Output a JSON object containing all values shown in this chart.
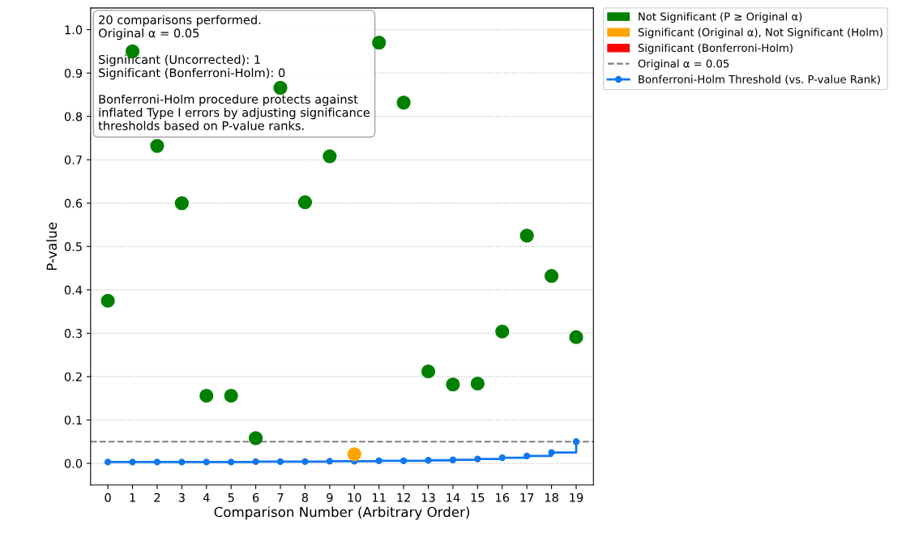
{
  "chart_data": {
    "type": "scatter",
    "xlabel": "Comparison Number (Arbitrary Order)",
    "ylabel": "P-value",
    "categories": [
      "0",
      "1",
      "2",
      "3",
      "4",
      "5",
      "6",
      "7",
      "8",
      "9",
      "10",
      "11",
      "12",
      "13",
      "14",
      "15",
      "16",
      "17",
      "18",
      "19"
    ],
    "series": [
      {
        "name": "Not Significant (P ≥ Original α)",
        "color": "#008000",
        "marker": "circle",
        "values": [
          0.375,
          0.95,
          0.732,
          0.6,
          0.156,
          0.156,
          0.058,
          0.866,
          0.602,
          0.708,
          null,
          0.97,
          0.832,
          0.212,
          0.182,
          0.184,
          0.304,
          0.525,
          0.432,
          0.291
        ]
      },
      {
        "name": "Significant (Original α), Not Significant (Holm)",
        "color": "#ffa500",
        "marker": "circle",
        "values": [
          null,
          null,
          null,
          null,
          null,
          null,
          null,
          null,
          null,
          null,
          0.021,
          null,
          null,
          null,
          null,
          null,
          null,
          null,
          null,
          null
        ]
      },
      {
        "name": "Significant (Bonferroni-Holm)",
        "color": "#ff0000",
        "marker": "circle",
        "values": [
          null,
          null,
          null,
          null,
          null,
          null,
          null,
          null,
          null,
          null,
          null,
          null,
          null,
          null,
          null,
          null,
          null,
          null,
          null,
          null
        ]
      },
      {
        "name": "Bonferroni-Holm Threshold (vs. P-value Rank)",
        "color": "#1177ee",
        "type": "step",
        "marker": "circle",
        "line_style": "solid",
        "values": [
          0.003,
          0.003,
          0.003,
          0.003,
          0.003,
          0.003,
          0.004,
          0.004,
          0.004,
          0.005,
          0.005,
          0.006,
          0.006,
          0.007,
          0.008,
          0.01,
          0.013,
          0.017,
          0.025,
          0.05
        ]
      }
    ],
    "ref_lines": [
      {
        "axis": "y",
        "value": 0.05,
        "label": "Original α = 0.05",
        "color": "#808080",
        "line_style": "dashed"
      }
    ],
    "ylim": [
      -0.05,
      1.05
    ],
    "yticks": [
      {
        "value": 0,
        "label": "0.0"
      },
      0.1,
      0.2,
      0.3,
      0.4,
      0.5,
      0.6,
      0.7,
      0.8,
      0.9,
      {
        "value": 1,
        "label": "1.0"
      }
    ],
    "grid": "y",
    "legend": "top right",
    "annotations": [
      "20 comparisons performed.\nOriginal α = 0.05\n\nSignificant (Uncorrected): 1\nSignificant (Bonferroni-Holm): 0\n\nBonferroni-Holm procedure protects against\ninflated Type I errors by adjusting significance\nthresholds based on P-value ranks."
    ]
  }
}
